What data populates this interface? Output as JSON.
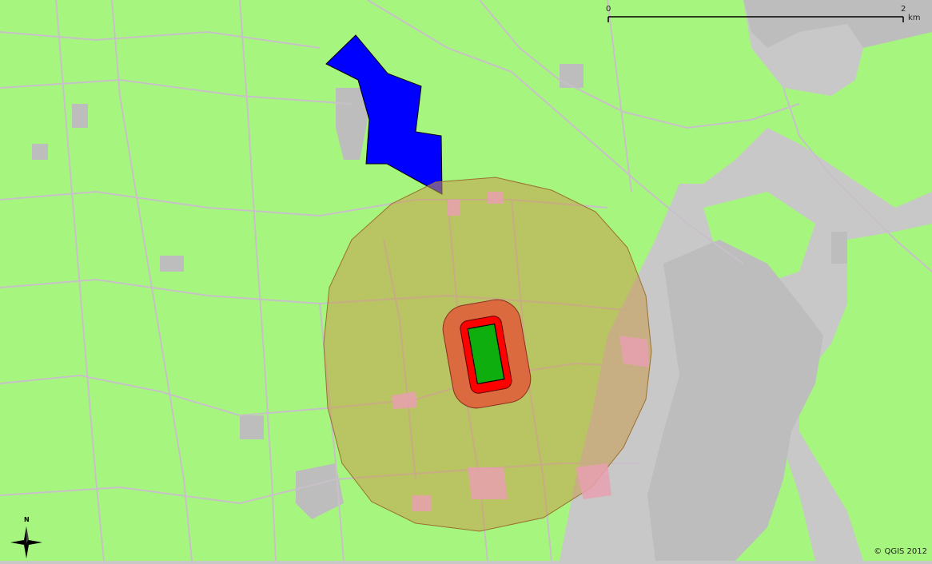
{
  "map": {
    "colors": {
      "background": "#c8c8c8",
      "fields": "#a6f57e",
      "roads": "#c8c0c8",
      "built": "#bdbdbd",
      "blue_area": "#0000ff",
      "outer_buffer": "#c89a4a",
      "mid_buffer": "#e05a3a",
      "inner_buffer": "#ff0000",
      "core_site": "#0fae0f",
      "pink_patch": "#e8a0b0"
    },
    "scale_bar": {
      "start_label": "0",
      "end_label": "2",
      "unit": "km"
    },
    "north_arrow": {
      "label": "N",
      "icon": "compass-rose-icon"
    },
    "credit": "© QGIS 2012"
  }
}
